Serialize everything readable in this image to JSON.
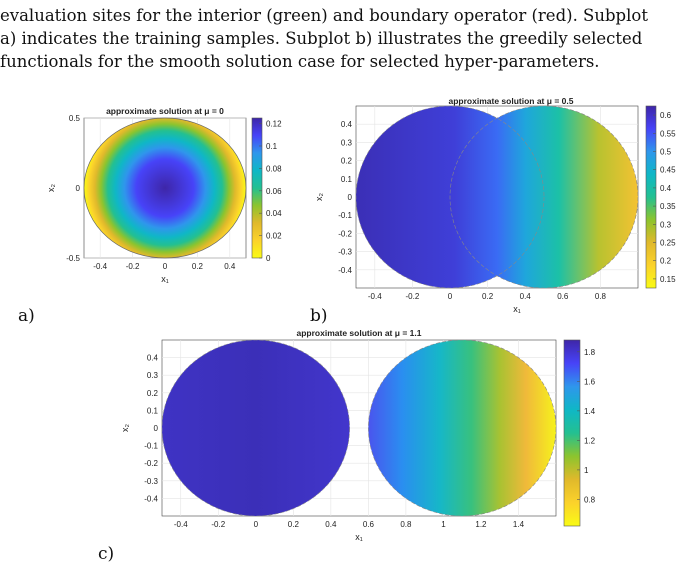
{
  "paragraph": {
    "line1": "evaluation sites for the interior (green) and boundary operator (red). Subplot",
    "line2": "a) indicates the training samples. Subplot b) illustrates the greedily selected",
    "line3": "functionals for the smooth solution case for selected hyper-parameters."
  },
  "subplot_labels": {
    "a": "a)",
    "b": "b)",
    "c": "c)"
  },
  "colormap": [
    "#3e26a8",
    "#4743f8",
    "#2f96ec",
    "#0fb7c6",
    "#23c091",
    "#8cc42e",
    "#e0b92b",
    "#fbd22b",
    "#f9fb15"
  ],
  "chart_data": [
    {
      "type": "heatmap",
      "title_prefix": "approximate solution at ",
      "title_mu": "μ = 0",
      "xlabel": "x₁",
      "ylabel": "x₂",
      "xlim": [
        -0.5,
        0.5
      ],
      "ylim": [
        -0.5,
        0.5
      ],
      "xticks": [
        "-0.4",
        "-0.2",
        "0",
        "0.2",
        "0.4"
      ],
      "yticks": [
        "0.5",
        "0",
        "-0.5"
      ],
      "colorbar": {
        "range": [
          0,
          0.125
        ],
        "ticks": [
          "0.12",
          "0.1",
          "0.08",
          "0.06",
          "0.04",
          "0.02",
          "0"
        ]
      },
      "domain": "disk radius 0.5 centered at (0,0)"
    },
    {
      "type": "heatmap",
      "title_prefix": "approximate solution at ",
      "title_mu": "μ = 0.5",
      "xlabel": "x₁",
      "ylabel": "x₂",
      "xlim": [
        -0.5,
        1.0
      ],
      "ylim": [
        -0.5,
        0.5
      ],
      "xticks": [
        "-0.4",
        "-0.2",
        "0",
        "0.2",
        "0.4",
        "0.6",
        "0.8"
      ],
      "yticks": [
        "0.4",
        "0.3",
        "0.2",
        "0.1",
        "0",
        "-0.1",
        "-0.2",
        "-0.3",
        "-0.4"
      ],
      "colorbar": {
        "range": [
          0.125,
          0.625
        ],
        "ticks": [
          "0.6",
          "0.55",
          "0.5",
          "0.45",
          "0.4",
          "0.35",
          "0.3",
          "0.25",
          "0.2",
          "0.15"
        ]
      },
      "domain": "union of disks radius 0.5 centered at (0,0) and (0.5,0)"
    },
    {
      "type": "heatmap",
      "title_prefix": "approximate solution at ",
      "title_mu": "μ = 1.1",
      "xlabel": "x₁",
      "ylabel": "x₂",
      "xlim": [
        -0.5,
        1.6
      ],
      "ylim": [
        -0.5,
        0.5
      ],
      "xticks": [
        "-0.4",
        "-0.2",
        "0",
        "0.2",
        "0.4",
        "0.6",
        "0.8",
        "1",
        "1.2",
        "1.4"
      ],
      "yticks": [
        "0.4",
        "0.3",
        "0.2",
        "0.1",
        "0",
        "-0.1",
        "-0.2",
        "-0.3",
        "-0.4"
      ],
      "colorbar": {
        "range": [
          0.62,
          1.88
        ],
        "ticks": [
          "1.8",
          "1.6",
          "1.4",
          "1.2",
          "1",
          "0.8"
        ]
      },
      "domain": "two disks radius 0.5 centered at (0,0) and (1.1,0)"
    }
  ]
}
